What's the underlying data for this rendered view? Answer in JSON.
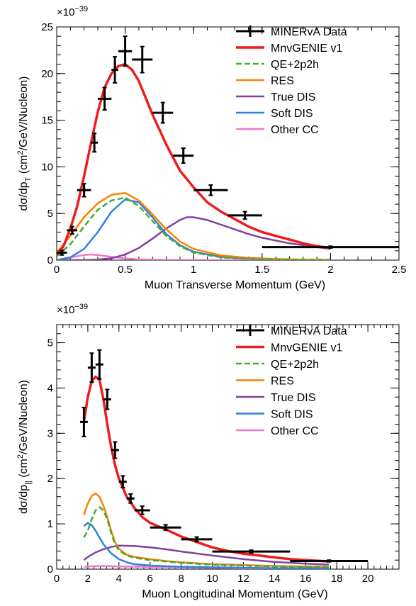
{
  "chart_data": [
    {
      "type": "line",
      "xlabel": "Muon Transverse Momentum (GeV)",
      "ylabel_main": "dσ/dp",
      "ylabel_sub": "T",
      "ylabel_unit_pre": " (cm",
      "ylabel_unit_sup": "2",
      "ylabel_unit_post": "/GeV/Nucleon)",
      "exponent_label": "×10",
      "exponent_power": "−39",
      "xlim": [
        0,
        2.5
      ],
      "ylim": [
        0,
        25
      ],
      "xticks": [
        0,
        0.5,
        1,
        1.5,
        2,
        2.5
      ],
      "xtick_labels": [
        "0",
        "0.5",
        "1",
        "1.5",
        "2",
        "2.5"
      ],
      "yticks": [
        0,
        5,
        10,
        15,
        20,
        25
      ],
      "ytick_labels": [
        "0",
        "5",
        "10",
        "15",
        "20",
        "25"
      ],
      "legend_position": "top-right",
      "data": {
        "name": "MINERvA Data",
        "x": [
          0.0375,
          0.1125,
          0.2,
          0.275,
          0.35,
          0.425,
          0.5,
          0.625,
          0.775,
          0.925,
          1.125,
          1.375,
          2.0
        ],
        "xerr": [
          0.0375,
          0.0375,
          0.05,
          0.025,
          0.05,
          0.025,
          0.05,
          0.075,
          0.075,
          0.075,
          0.125,
          0.125,
          0.5
        ],
        "y": [
          0.8,
          3.2,
          7.5,
          12.6,
          17.3,
          20.4,
          22.4,
          21.5,
          15.8,
          11.2,
          7.5,
          4.8,
          1.4
        ],
        "yerr": [
          0.25,
          0.4,
          0.7,
          1.0,
          1.2,
          1.4,
          1.6,
          1.4,
          1.1,
          0.8,
          0.55,
          0.4,
          0.1
        ]
      },
      "series": [
        {
          "name": "MnvGENIE v1",
          "color": "#ee1c1c",
          "dashed": false,
          "x": [
            0.0,
            0.05,
            0.1,
            0.15,
            0.2,
            0.25,
            0.3,
            0.35,
            0.4,
            0.45,
            0.5,
            0.55,
            0.6,
            0.7,
            0.8,
            0.9,
            1.0,
            1.1,
            1.2,
            1.3,
            1.4,
            1.5,
            1.6,
            1.7,
            1.8,
            1.9,
            2.0
          ],
          "y": [
            0.6,
            1.5,
            3.4,
            5.8,
            9.0,
            12.5,
            15.9,
            18.5,
            20.0,
            20.8,
            21.0,
            20.4,
            19.2,
            15.6,
            12.4,
            9.6,
            7.8,
            6.2,
            5.2,
            4.4,
            3.6,
            3.0,
            2.6,
            2.2,
            1.8,
            1.5,
            1.3
          ]
        },
        {
          "name": "QE+2p2h",
          "color": "#44aa33",
          "dashed": true,
          "x": [
            0.0,
            0.1,
            0.2,
            0.3,
            0.4,
            0.5,
            0.6,
            0.7,
            0.8,
            0.9,
            1.0,
            1.2,
            1.4,
            1.6,
            1.8,
            2.0
          ],
          "y": [
            0.4,
            1.7,
            3.6,
            5.4,
            6.4,
            6.7,
            5.8,
            4.2,
            2.6,
            1.5,
            0.8,
            0.3,
            0.15,
            0.08,
            0.05,
            0.03
          ]
        },
        {
          "name": "RES",
          "color": "#ff8000",
          "dashed": false,
          "x": [
            0.0,
            0.1,
            0.2,
            0.3,
            0.4,
            0.5,
            0.6,
            0.7,
            0.8,
            0.9,
            1.0,
            1.2,
            1.4,
            1.6,
            1.8,
            2.0
          ],
          "y": [
            0.8,
            2.6,
            4.6,
            6.1,
            7.0,
            7.2,
            6.4,
            4.9,
            3.3,
            2.0,
            1.2,
            0.5,
            0.25,
            0.12,
            0.06,
            0.03
          ]
        },
        {
          "name": "True DIS",
          "color": "#8040a0",
          "dashed": false,
          "x": [
            0.0,
            0.2,
            0.3,
            0.4,
            0.5,
            0.6,
            0.7,
            0.8,
            0.9,
            0.95,
            1.0,
            1.1,
            1.2,
            1.3,
            1.4,
            1.5,
            1.6,
            1.7,
            1.8,
            1.9,
            2.0
          ],
          "y": [
            0.0,
            0.0,
            0.05,
            0.2,
            0.6,
            1.3,
            2.3,
            3.4,
            4.3,
            4.6,
            4.6,
            4.3,
            3.8,
            3.3,
            2.8,
            2.4,
            2.1,
            1.8,
            1.6,
            1.4,
            1.2
          ]
        },
        {
          "name": "Soft DIS",
          "color": "#3080e0",
          "dashed": false,
          "x": [
            0.0,
            0.1,
            0.2,
            0.3,
            0.4,
            0.5,
            0.6,
            0.7,
            0.8,
            0.9,
            1.0,
            1.2,
            1.4,
            1.6,
            1.8,
            2.0
          ],
          "y": [
            0.0,
            0.3,
            1.2,
            3.0,
            5.2,
            6.5,
            6.2,
            4.6,
            2.8,
            1.6,
            0.9,
            0.35,
            0.15,
            0.07,
            0.03,
            0.02
          ]
        },
        {
          "name": "Other CC",
          "color": "#ee77cc",
          "dashed": false,
          "x": [
            0.0,
            0.1,
            0.2,
            0.25,
            0.3,
            0.4,
            0.5,
            0.6,
            0.8,
            1.0,
            1.5,
            2.0
          ],
          "y": [
            0.0,
            0.3,
            0.55,
            0.6,
            0.55,
            0.35,
            0.18,
            0.08,
            0.03,
            0.01,
            0.0,
            0.0
          ]
        }
      ]
    },
    {
      "type": "line",
      "xlabel": "Muon Longitudinal Momentum (GeV)",
      "ylabel_main": "dσ/dp",
      "ylabel_sub": "||",
      "ylabel_unit_pre": " (cm",
      "ylabel_unit_sup": "2",
      "ylabel_unit_post": "/GeV/Nucleon)",
      "exponent_label": "×10",
      "exponent_power": "−39",
      "xlim": [
        0,
        22
      ],
      "ylim": [
        0,
        5.4
      ],
      "xticks": [
        0,
        2,
        4,
        6,
        8,
        10,
        12,
        14,
        16,
        18,
        20
      ],
      "xtick_labels": [
        "0",
        "2",
        "4",
        "6",
        "8",
        "10",
        "12",
        "14",
        "16",
        "18",
        "20"
      ],
      "yticks": [
        0,
        1,
        2,
        3,
        4,
        5
      ],
      "ytick_labels": [
        "0",
        "1",
        "2",
        "3",
        "4",
        "5"
      ],
      "legend_position": "top-right",
      "data": {
        "name": "MINERvA Data",
        "x": [
          1.75,
          2.25,
          2.75,
          3.25,
          3.75,
          4.25,
          4.75,
          5.5,
          7.0,
          9.0,
          12.5,
          17.5
        ],
        "xerr": [
          0.25,
          0.25,
          0.25,
          0.25,
          0.25,
          0.25,
          0.25,
          0.5,
          1.0,
          1.0,
          2.5,
          2.5
        ],
        "y": [
          3.25,
          4.45,
          4.52,
          3.75,
          2.63,
          1.93,
          1.56,
          1.3,
          0.92,
          0.66,
          0.39,
          0.18
        ],
        "yerr": [
          0.32,
          0.32,
          0.32,
          0.22,
          0.18,
          0.13,
          0.1,
          0.09,
          0.06,
          0.05,
          0.03,
          0.02
        ]
      },
      "series": [
        {
          "name": "MnvGENIE v1",
          "color": "#ee1c1c",
          "dashed": false,
          "x": [
            1.75,
            2.0,
            2.25,
            2.5,
            2.75,
            3.0,
            3.25,
            3.5,
            3.75,
            4.0,
            4.5,
            5.0,
            5.5,
            6.0,
            7.0,
            8.0,
            9.0,
            10.0,
            11.0,
            12.0,
            13.0,
            14.0,
            15.0,
            16.0,
            17.0,
            17.5
          ],
          "y": [
            3.25,
            3.8,
            4.15,
            4.25,
            4.18,
            3.75,
            3.2,
            2.7,
            2.3,
            2.0,
            1.6,
            1.35,
            1.15,
            1.02,
            0.88,
            0.72,
            0.6,
            0.48,
            0.4,
            0.34,
            0.3,
            0.26,
            0.22,
            0.2,
            0.18,
            0.17
          ]
        },
        {
          "name": "QE+2p2h",
          "color": "#44aa33",
          "dashed": true,
          "x": [
            1.75,
            2.0,
            2.25,
            2.5,
            2.75,
            3.0,
            3.25,
            3.5,
            3.75,
            4.0,
            4.5,
            5.0,
            6.0,
            7.0,
            8.0,
            10.0,
            12.0,
            14.0,
            16.0,
            17.5
          ],
          "y": [
            0.7,
            0.85,
            1.1,
            1.3,
            1.37,
            1.3,
            1.1,
            0.8,
            0.55,
            0.42,
            0.3,
            0.25,
            0.2,
            0.17,
            0.14,
            0.1,
            0.08,
            0.06,
            0.05,
            0.05
          ]
        },
        {
          "name": "RES",
          "color": "#ff8000",
          "dashed": false,
          "x": [
            1.75,
            2.0,
            2.25,
            2.5,
            2.75,
            3.0,
            3.25,
            3.5,
            3.75,
            4.0,
            4.5,
            5.0,
            6.0,
            7.0,
            8.0,
            10.0,
            12.0,
            14.0,
            16.0,
            17.5
          ],
          "y": [
            1.2,
            1.45,
            1.62,
            1.67,
            1.6,
            1.4,
            1.15,
            0.85,
            0.6,
            0.45,
            0.32,
            0.27,
            0.22,
            0.18,
            0.15,
            0.11,
            0.09,
            0.07,
            0.06,
            0.05
          ]
        },
        {
          "name": "True DIS",
          "color": "#8040a0",
          "dashed": false,
          "x": [
            1.75,
            2.0,
            2.5,
            3.0,
            3.5,
            4.0,
            5.0,
            6.0,
            7.0,
            8.0,
            10.0,
            12.0,
            14.0,
            16.0,
            17.5
          ],
          "y": [
            0.2,
            0.27,
            0.37,
            0.44,
            0.49,
            0.52,
            0.51,
            0.48,
            0.44,
            0.39,
            0.3,
            0.22,
            0.16,
            0.12,
            0.1
          ]
        },
        {
          "name": "Soft DIS",
          "color": "#3080e0",
          "dashed": false,
          "x": [
            1.75,
            2.0,
            2.25,
            2.5,
            2.75,
            3.0,
            3.5,
            4.0,
            4.5,
            5.0,
            6.0,
            8.0,
            10.0,
            12.0,
            14.0,
            16.0,
            17.5
          ],
          "y": [
            0.95,
            1.02,
            0.97,
            0.85,
            0.7,
            0.55,
            0.35,
            0.22,
            0.15,
            0.11,
            0.08,
            0.05,
            0.04,
            0.03,
            0.02,
            0.02,
            0.02
          ]
        },
        {
          "name": "Other CC",
          "color": "#ee77cc",
          "dashed": false,
          "x": [
            1.75,
            2.0,
            3.0,
            4.0,
            6.0,
            8.0,
            10.0,
            12.0,
            14.0,
            16.0,
            17.5
          ],
          "y": [
            0.05,
            0.06,
            0.07,
            0.06,
            0.05,
            0.04,
            0.03,
            0.02,
            0.02,
            0.01,
            0.01
          ]
        }
      ]
    }
  ]
}
